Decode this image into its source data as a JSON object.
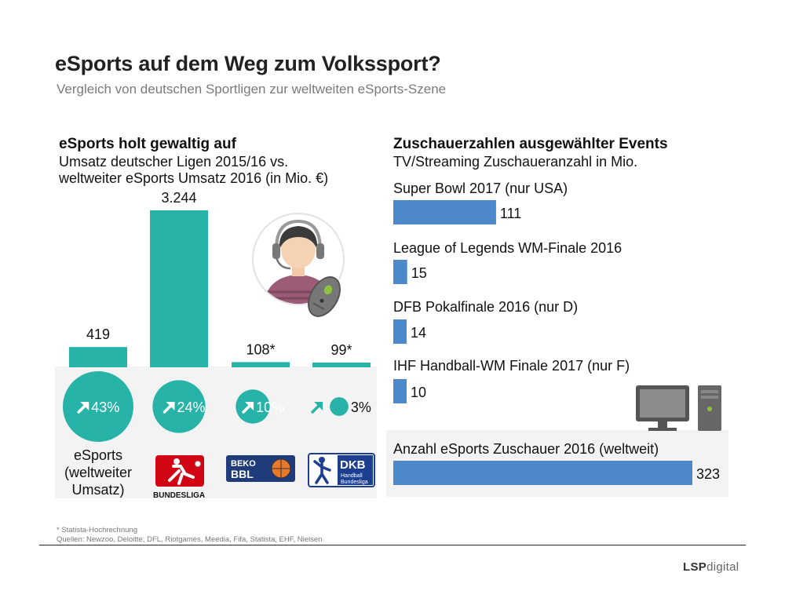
{
  "header": {
    "title": "eSports auf dem Weg zum Volkssport?",
    "subtitle": "Vergleich von deutschen Sportligen zur weltweiten eSports-Szene"
  },
  "chart_data": [
    {
      "type": "bar",
      "title": "eSports holt gewaltig auf",
      "subtitle_lines": [
        "Umsatz deutscher Ligen 2015/16 vs.",
        "weltweiter eSports Umsatz 2016 (in Mio. €)"
      ],
      "categories": [
        "eSports",
        "Bundesliga",
        "BBL",
        "DKB Handball-Bundesliga"
      ],
      "values": [
        419,
        3244,
        108,
        99
      ],
      "value_labels": [
        "419",
        "3.244",
        "108*",
        "99*"
      ],
      "growth_labels": [
        "43%",
        "24%",
        "10%",
        "3%"
      ],
      "growth_values": [
        43,
        24,
        10,
        3
      ],
      "esports_label_lines": [
        "eSports",
        "(weltweiter",
        "Umsatz)"
      ],
      "ylim": [
        0,
        3244
      ],
      "color": "#28b3a8"
    },
    {
      "type": "bar",
      "orientation": "horizontal",
      "title": "Zuschauerzahlen ausgewählter Events",
      "subtitle": "TV/Streaming Zuschaueranzahl in Mio.",
      "categories": [
        "Super Bowl 2017 (nur USA)",
        "League of Legends WM-Finale 2016",
        "DFB Pokalfinale 2016 (nur D)",
        "IHF Handball-WM Finale 2017 (nur F)",
        "Anzahl eSports Zuschauer 2016 (weltweit)"
      ],
      "values": [
        111,
        15,
        14,
        10,
        323
      ],
      "value_labels": [
        "111",
        "15",
        "14",
        "10",
        "323"
      ],
      "xlim": [
        0,
        323
      ],
      "color": "#4d88cb"
    }
  ],
  "logos": {
    "bundesliga": "BUNDESLIGA",
    "bbl_top": "BEKO",
    "bbl_main": "BBL",
    "dkb": "DKB",
    "dkb_sub1": "Handball",
    "dkb_sub2": "Bundesliga"
  },
  "icons": {
    "gamer": "gamer-headset-icon",
    "computer": "desktop-computer-icon",
    "arrow": "arrow-up-right-icon"
  },
  "footer": {
    "footnote": "* Statista-Hochrechnung",
    "sources": "Quellen: Newzoo, Deloitte, DFL, Riotgames, Meedia, Fifa, Statista, EHF, Nielsen",
    "brand_bold": "LSP",
    "brand_light": "digital"
  }
}
